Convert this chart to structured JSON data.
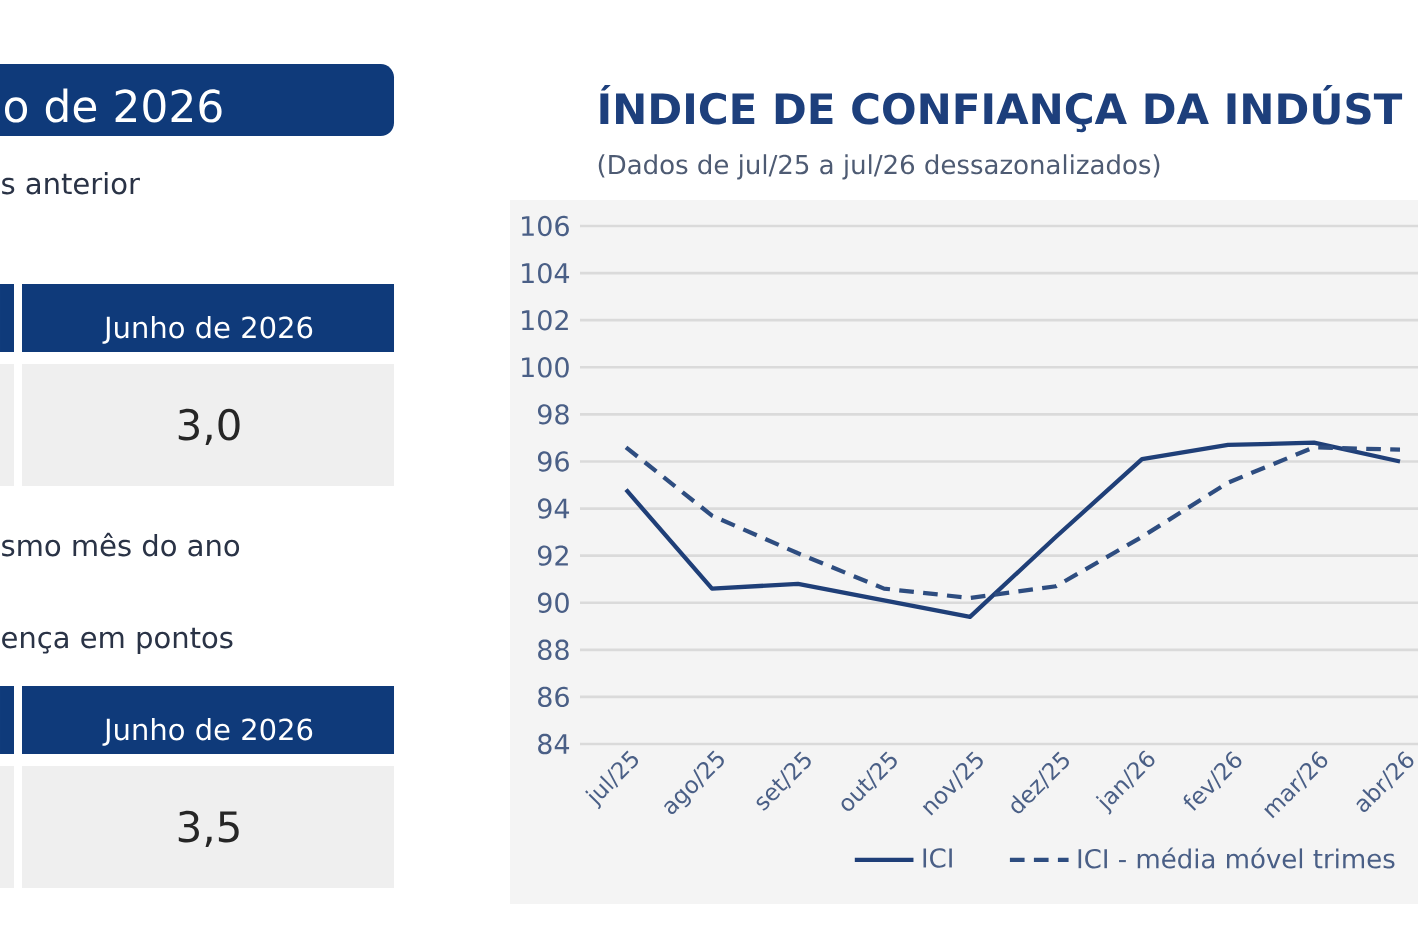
{
  "chart_data": [
    {
      "type": "other",
      "title": "o de 2026",
      "annotations": [
        "s anterior",
        "Junho de 2026",
        "3,0",
        "smo mês do ano",
        "ença em pontos",
        "Junho de 2026",
        "3,5"
      ]
    },
    {
      "type": "line",
      "title": "ÍNDICE DE CONFIANÇA DA INDÚST",
      "subtitle": "(Dados de jul/25 a jul/26 dessazonalizados)",
      "categories": [
        "jul/25",
        "ago/25",
        "set/25",
        "out/25",
        "nov/25",
        "dez/25",
        "jan/26",
        "fev/26",
        "mar/26",
        "abr/26"
      ],
      "series": [
        {
          "name": "ICI",
          "color": "#1f3f78",
          "values": [
            94.8,
            90.6,
            90.8,
            90.1,
            89.4,
            92.8,
            96.1,
            96.7,
            96.8,
            96.0
          ]
        },
        {
          "name": "ICI - média móvel trimes",
          "color": "#2e4d80",
          "line_style": "dashed",
          "values": [
            96.6,
            93.7,
            92.1,
            90.6,
            90.2,
            90.7,
            92.8,
            95.1,
            96.6,
            96.5
          ]
        }
      ],
      "ylim": [
        84,
        106
      ],
      "yticks": [
        84,
        86,
        88,
        90,
        92,
        94,
        96,
        98,
        100,
        102,
        104,
        106
      ],
      "grid": "y",
      "legend": "bottom",
      "line_style": "solid"
    }
  ]
}
